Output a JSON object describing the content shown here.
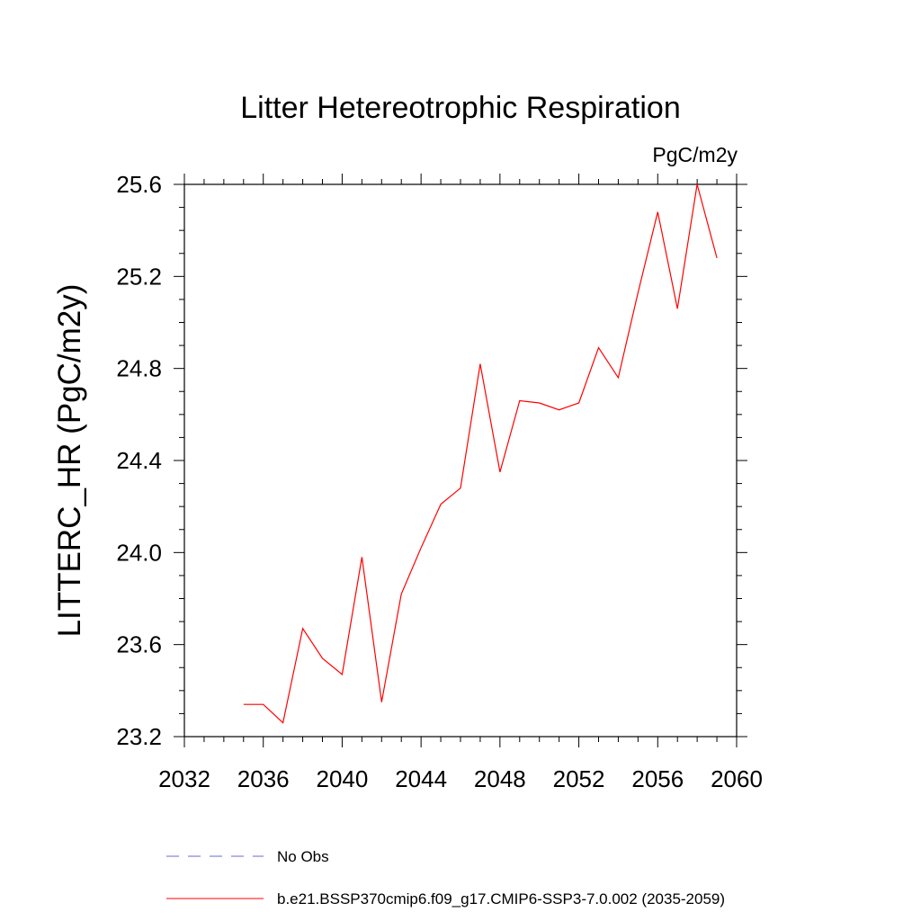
{
  "chart_data": {
    "type": "line",
    "title": "Litter Hetereotrophic Respiration",
    "units_label": "PgC/m2y",
    "ylabel": "LITTERC_HR  (PgC/m2y)",
    "xlabel": "",
    "xlim": [
      2032,
      2060
    ],
    "ylim": [
      23.2,
      25.6
    ],
    "x_ticks": [
      2032,
      2036,
      2040,
      2044,
      2048,
      2052,
      2056,
      2060
    ],
    "x_tick_labels": [
      "2032",
      "2036",
      "2040",
      "2044",
      "2048",
      "2052",
      "2056",
      "2060"
    ],
    "y_ticks": [
      23.2,
      23.6,
      24.0,
      24.4,
      24.8,
      25.2,
      25.6
    ],
    "y_tick_labels": [
      "23.2",
      "23.6",
      "24.0",
      "24.4",
      "24.8",
      "25.2",
      "25.6"
    ],
    "grid": false,
    "legend_position": "bottom",
    "series": [
      {
        "name": "b.e21.BSSP370cmip6.f09_g17.CMIP6-SSP3-7.0.002 (2035-2059)",
        "color": "#ff0000",
        "dash": "solid",
        "x": [
          2035,
          2036,
          2037,
          2038,
          2039,
          2040,
          2041,
          2042,
          2043,
          2044,
          2045,
          2046,
          2047,
          2048,
          2049,
          2050,
          2051,
          2052,
          2053,
          2054,
          2055,
          2056,
          2057,
          2058,
          2059
        ],
        "y": [
          23.34,
          23.34,
          23.26,
          23.67,
          23.54,
          23.47,
          23.98,
          23.35,
          23.82,
          24.02,
          24.21,
          24.28,
          24.82,
          24.35,
          24.66,
          24.65,
          24.62,
          24.65,
          24.89,
          24.76,
          25.13,
          25.48,
          25.06,
          25.6,
          25.28
        ]
      }
    ],
    "legend": [
      {
        "label": "No Obs",
        "color": "#6a6acd",
        "dash": "dashed"
      },
      {
        "label": "b.e21.BSSP370cmip6.f09_g17.CMIP6-SSP3-7.0.002 (2035-2059)",
        "color": "#ff0000",
        "dash": "solid"
      }
    ]
  }
}
